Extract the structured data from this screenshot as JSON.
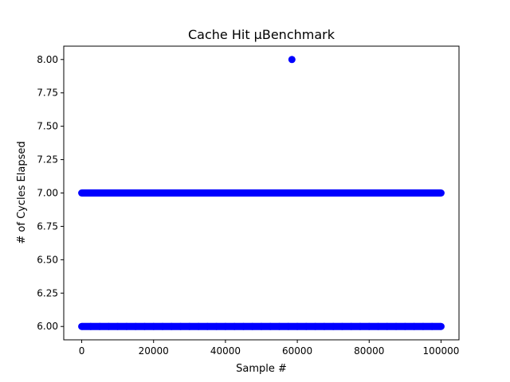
{
  "chart_data": {
    "type": "scatter",
    "title": "Cache Hit µBenchmark",
    "xlabel": "Sample #",
    "ylabel": "# of Cycles Elapsed",
    "xlim": [
      -5000,
      105000
    ],
    "ylim": [
      5.9,
      8.1
    ],
    "xticks": [
      0,
      20000,
      40000,
      60000,
      80000,
      100000
    ],
    "xtick_labels": [
      "0",
      "20000",
      "40000",
      "60000",
      "80000",
      "100000"
    ],
    "yticks": [
      6.0,
      6.25,
      6.5,
      6.75,
      7.0,
      7.25,
      7.5,
      7.75,
      8.0
    ],
    "ytick_labels": [
      "6.00",
      "6.25",
      "6.50",
      "6.75",
      "7.00",
      "7.25",
      "7.50",
      "7.75",
      "8.00"
    ],
    "grid": false,
    "marker_color": "#0000ff",
    "series": [
      {
        "points": [
          {
            "x": 0,
            "y": 6.0
          },
          {
            "x": 2500,
            "y": 6.0
          },
          {
            "x": 5000,
            "y": 6.0
          },
          {
            "x": 7500,
            "y": 6.0
          },
          {
            "x": 10000,
            "y": 6.0
          },
          {
            "x": 12500,
            "y": 6.0
          },
          {
            "x": 15000,
            "y": 6.0
          },
          {
            "x": 17500,
            "y": 6.0
          },
          {
            "x": 20000,
            "y": 6.0
          },
          {
            "x": 22500,
            "y": 6.0
          },
          {
            "x": 25000,
            "y": 6.0
          },
          {
            "x": 27500,
            "y": 6.0
          },
          {
            "x": 30000,
            "y": 6.0
          },
          {
            "x": 32500,
            "y": 6.0
          },
          {
            "x": 35000,
            "y": 6.0
          },
          {
            "x": 37500,
            "y": 6.0
          },
          {
            "x": 40000,
            "y": 6.0
          },
          {
            "x": 42500,
            "y": 6.0
          },
          {
            "x": 45000,
            "y": 6.0
          },
          {
            "x": 47500,
            "y": 6.0
          },
          {
            "x": 50000,
            "y": 6.0
          },
          {
            "x": 52500,
            "y": 6.0
          },
          {
            "x": 55000,
            "y": 6.0
          },
          {
            "x": 57500,
            "y": 6.0
          },
          {
            "x": 60000,
            "y": 6.0
          },
          {
            "x": 62500,
            "y": 6.0
          },
          {
            "x": 65000,
            "y": 6.0
          },
          {
            "x": 67500,
            "y": 6.0
          },
          {
            "x": 70000,
            "y": 6.0
          },
          {
            "x": 72500,
            "y": 6.0
          },
          {
            "x": 75000,
            "y": 6.0
          },
          {
            "x": 77500,
            "y": 6.0
          },
          {
            "x": 80000,
            "y": 6.0
          },
          {
            "x": 82500,
            "y": 6.0
          },
          {
            "x": 85000,
            "y": 6.0
          },
          {
            "x": 87500,
            "y": 6.0
          },
          {
            "x": 90000,
            "y": 6.0
          },
          {
            "x": 92500,
            "y": 6.0
          },
          {
            "x": 95000,
            "y": 6.0
          },
          {
            "x": 97500,
            "y": 6.0
          },
          {
            "x": 100000,
            "y": 6.0
          },
          {
            "x": 0,
            "y": 7.0
          },
          {
            "x": 2500,
            "y": 7.0
          },
          {
            "x": 5000,
            "y": 7.0
          },
          {
            "x": 7500,
            "y": 7.0
          },
          {
            "x": 10000,
            "y": 7.0
          },
          {
            "x": 12500,
            "y": 7.0
          },
          {
            "x": 15000,
            "y": 7.0
          },
          {
            "x": 17500,
            "y": 7.0
          },
          {
            "x": 20000,
            "y": 7.0
          },
          {
            "x": 22500,
            "y": 7.0
          },
          {
            "x": 25000,
            "y": 7.0
          },
          {
            "x": 27500,
            "y": 7.0
          },
          {
            "x": 30000,
            "y": 7.0
          },
          {
            "x": 32500,
            "y": 7.0
          },
          {
            "x": 35000,
            "y": 7.0
          },
          {
            "x": 37500,
            "y": 7.0
          },
          {
            "x": 40000,
            "y": 7.0
          },
          {
            "x": 42500,
            "y": 7.0
          },
          {
            "x": 45000,
            "y": 7.0
          },
          {
            "x": 47500,
            "y": 7.0
          },
          {
            "x": 50000,
            "y": 7.0
          },
          {
            "x": 52500,
            "y": 7.0
          },
          {
            "x": 55000,
            "y": 7.0
          },
          {
            "x": 57500,
            "y": 7.0
          },
          {
            "x": 60000,
            "y": 7.0
          },
          {
            "x": 62500,
            "y": 7.0
          },
          {
            "x": 65000,
            "y": 7.0
          },
          {
            "x": 67500,
            "y": 7.0
          },
          {
            "x": 70000,
            "y": 7.0
          },
          {
            "x": 72500,
            "y": 7.0
          },
          {
            "x": 75000,
            "y": 7.0
          },
          {
            "x": 77500,
            "y": 7.0
          },
          {
            "x": 80000,
            "y": 7.0
          },
          {
            "x": 82500,
            "y": 7.0
          },
          {
            "x": 85000,
            "y": 7.0
          },
          {
            "x": 87500,
            "y": 7.0
          },
          {
            "x": 90000,
            "y": 7.0
          },
          {
            "x": 92500,
            "y": 7.0
          },
          {
            "x": 95000,
            "y": 7.0
          },
          {
            "x": 97500,
            "y": 7.0
          },
          {
            "x": 100000,
            "y": 7.0
          },
          {
            "x": 58500,
            "y": 8.0
          }
        ]
      }
    ]
  }
}
